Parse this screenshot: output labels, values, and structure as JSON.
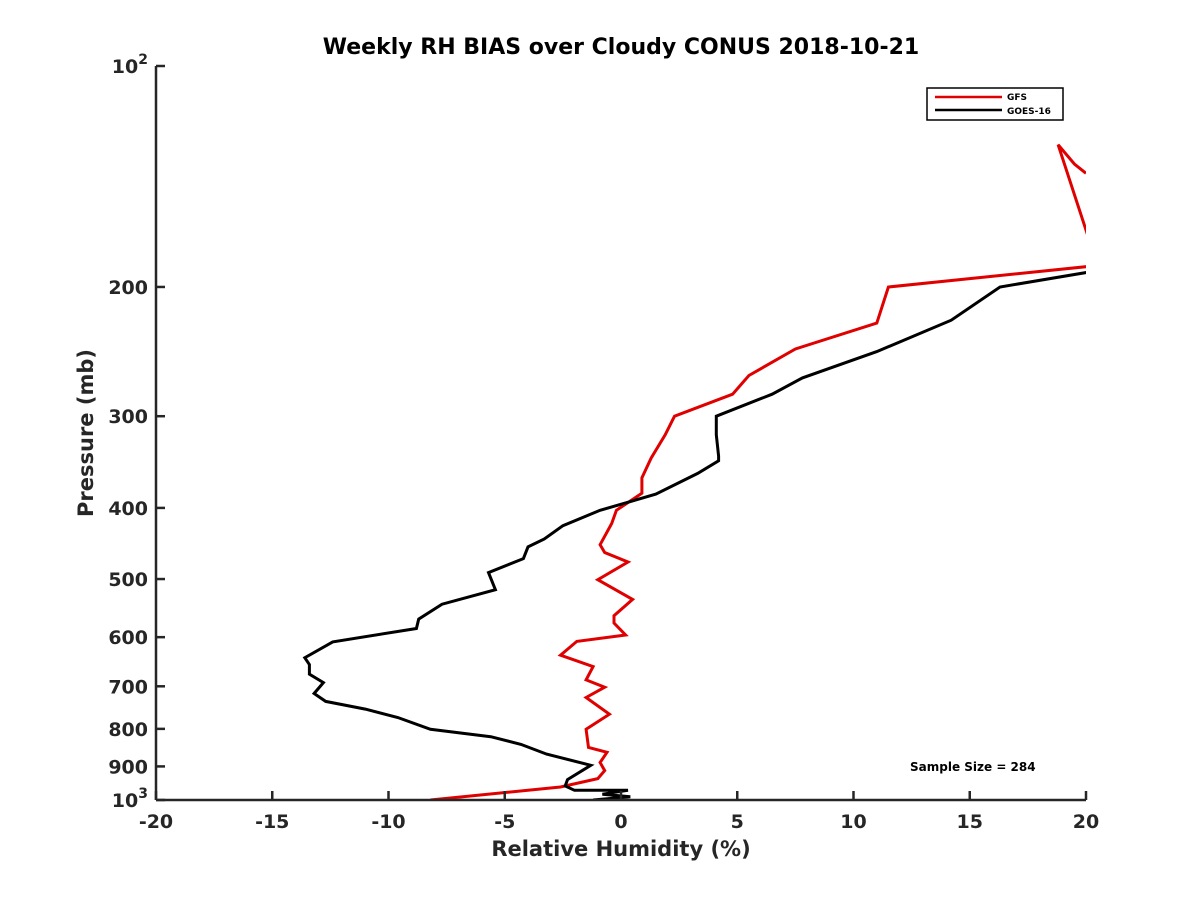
{
  "chart_data": {
    "type": "line",
    "title": "Weekly RH BIAS over Cloudy CONUS 2018-10-21",
    "xlabel": "Relative Humidity (%)",
    "ylabel": "Pressure (mb)",
    "xlim": [
      -20,
      20
    ],
    "ylim": [
      1000,
      100
    ],
    "yscale": "log",
    "xticks": [
      -20,
      -15,
      -10,
      -5,
      0,
      5,
      10,
      15,
      20
    ],
    "yticks": [
      {
        "value": 100,
        "label": "10",
        "sup": "2"
      },
      {
        "value": 200,
        "label": "200"
      },
      {
        "value": 300,
        "label": "300"
      },
      {
        "value": 400,
        "label": "400"
      },
      {
        "value": 500,
        "label": "500"
      },
      {
        "value": 600,
        "label": "600"
      },
      {
        "value": 700,
        "label": "700"
      },
      {
        "value": 800,
        "label": "800"
      },
      {
        "value": 900,
        "label": "900"
      },
      {
        "value": 1000,
        "label": "10",
        "sup": "3"
      }
    ],
    "legend_position": "top-right",
    "annotation": "Sample Size = 284",
    "series": [
      {
        "name": "GFS",
        "color": "#e00000",
        "x": [
          20.0,
          19.5,
          18.8,
          20.5,
          11.5,
          11.0,
          7.5,
          5.5,
          4.8,
          2.3,
          1.9,
          1.3,
          0.9,
          0.9,
          -0.2,
          -0.4,
          -0.9,
          -0.7,
          0.3,
          -1.0,
          0.5,
          -0.3,
          -0.3,
          0.2,
          -1.9,
          -2.6,
          -1.2,
          -1.5,
          -0.7,
          -1.5,
          -0.5,
          -1.5,
          -1.4,
          -0.6,
          -0.9,
          -0.7,
          -1.0,
          -2.6,
          -8.2
        ],
        "y": [
          140,
          136,
          128,
          187,
          200,
          224,
          243,
          264,
          280,
          300,
          318,
          342,
          364,
          382,
          403,
          420,
          449,
          460,
          474,
          501,
          533,
          561,
          574,
          596,
          608,
          635,
          658,
          686,
          702,
          725,
          764,
          801,
          848,
          861,
          889,
          912,
          935,
          960,
          1000
        ]
      },
      {
        "name": "GOES-16",
        "color": "#000000",
        "x": [
          20.5,
          16.3,
          14.2,
          11.0,
          7.8,
          6.5,
          4.1,
          4.1,
          4.2,
          4.2,
          3.3,
          1.5,
          -0.9,
          -2.5,
          -3.3,
          -4.0,
          -4.2,
          -5.7,
          -5.4,
          -7.7,
          -8.7,
          -8.8,
          -12.4,
          -13.6,
          -13.4,
          -13.4,
          -12.8,
          -13.2,
          -12.7,
          -11.0,
          -9.6,
          -8.2,
          -5.6,
          -4.3,
          -3.2,
          -1.3,
          -2.3,
          -2.4,
          -2.0,
          0.3,
          -0.8,
          0.4,
          -1.2
        ],
        "y": [
          190,
          200,
          222,
          245,
          266,
          280,
          300,
          318,
          340,
          345,
          359,
          383,
          403,
          423,
          441,
          452,
          469,
          490,
          517,
          541,
          567,
          584,
          609,
          640,
          654,
          674,
          692,
          716,
          734,
          752,
          772,
          801,
          820,
          840,
          866,
          897,
          938,
          957,
          970,
          970,
          982,
          990,
          1000
        ]
      }
    ]
  }
}
